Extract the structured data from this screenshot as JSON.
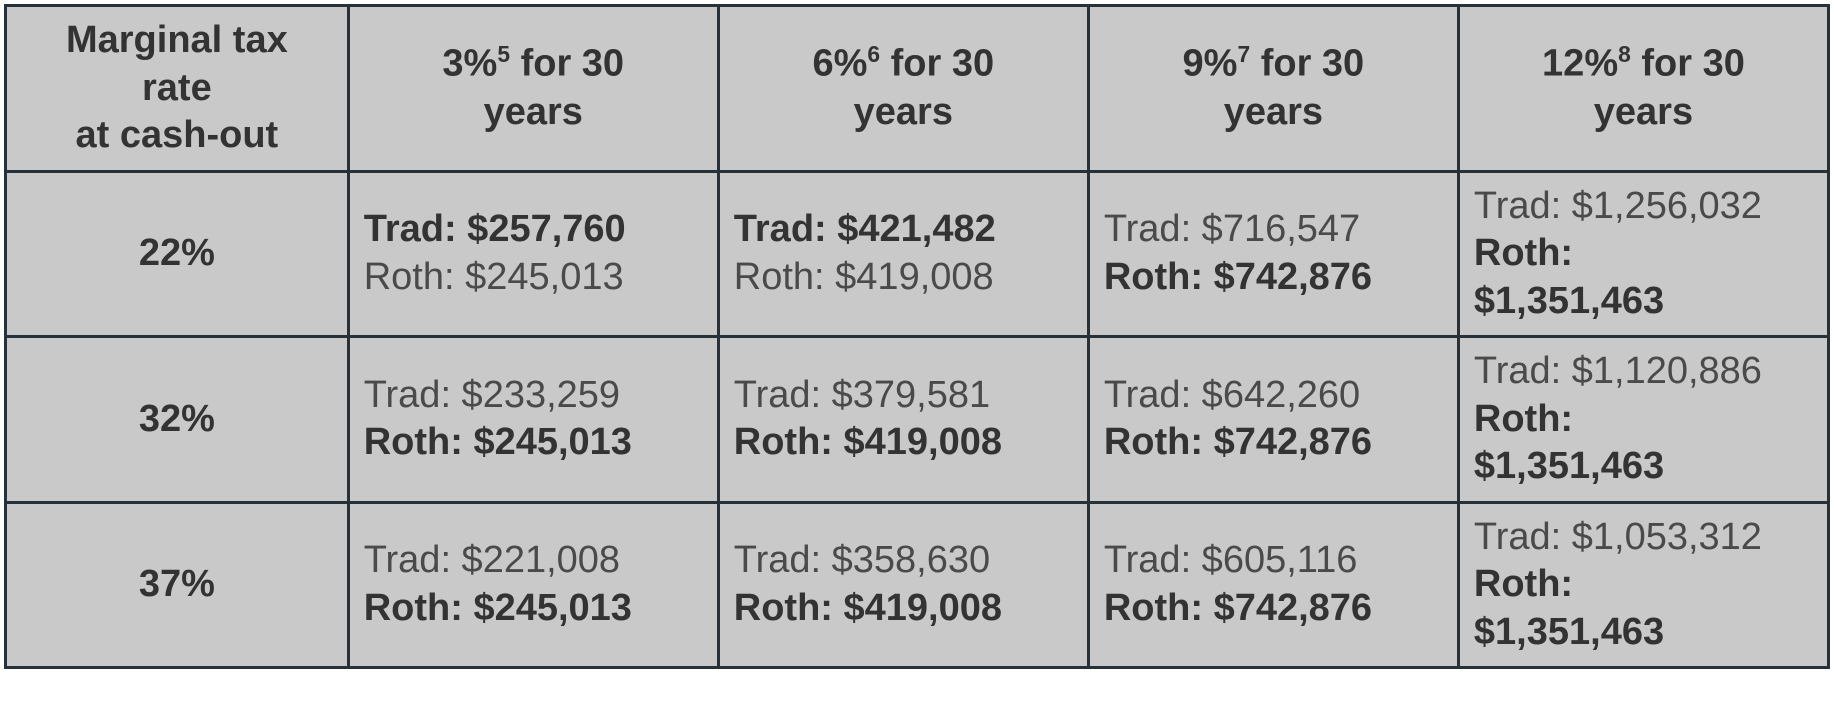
{
  "table": {
    "background_color": "#c9c9c9",
    "border_color": "#27313a",
    "text_color": "#4a4a4a",
    "bold_text_color": "#333333",
    "font_family": "Arial",
    "header_fontsize_pt": 28,
    "body_fontsize_pt": 28,
    "columns": [
      {
        "lines": [
          "Marginal tax",
          "rate",
          "at cash-out"
        ],
        "sup": null
      },
      {
        "percent": "3%",
        "sup": "5",
        "suffix": " for 30",
        "line2": "years"
      },
      {
        "percent": "6%",
        "sup": "6",
        "suffix": " for 30",
        "line2": "years"
      },
      {
        "percent": "9%",
        "sup": "7",
        "suffix": " for 30",
        "line2": "years"
      },
      {
        "percent": "12%",
        "sup": "8",
        "suffix": " for 30",
        "line2": "years"
      }
    ],
    "rows": [
      {
        "rate": "22%",
        "cells": [
          {
            "trad": "Trad: $257,760",
            "trad_bold": true,
            "roth": "Roth: $245,013",
            "roth_bold": false
          },
          {
            "trad": "Trad: $421,482",
            "trad_bold": true,
            "roth": "Roth: $419,008",
            "roth_bold": false
          },
          {
            "trad": "Trad: $716,547",
            "trad_bold": false,
            "roth": "Roth: $742,876",
            "roth_bold": true
          },
          {
            "trad": "Trad: $1,256,032",
            "trad_bold": false,
            "roth": "Roth: $1,351,463",
            "roth_bold": true,
            "wrap": true
          }
        ]
      },
      {
        "rate": "32%",
        "cells": [
          {
            "trad": "Trad: $233,259",
            "trad_bold": false,
            "roth": "Roth: $245,013",
            "roth_bold": true
          },
          {
            "trad": "Trad: $379,581",
            "trad_bold": false,
            "roth": "Roth: $419,008",
            "roth_bold": true
          },
          {
            "trad": "Trad: $642,260",
            "trad_bold": false,
            "roth": "Roth: $742,876",
            "roth_bold": true
          },
          {
            "trad": "Trad: $1,120,886",
            "trad_bold": false,
            "roth": "Roth: $1,351,463",
            "roth_bold": true,
            "wrap": true
          }
        ]
      },
      {
        "rate": "37%",
        "cells": [
          {
            "trad": "Trad: $221,008",
            "trad_bold": false,
            "roth": "Roth: $245,013",
            "roth_bold": true
          },
          {
            "trad": "Trad: $358,630",
            "trad_bold": false,
            "roth": "Roth: $419,008",
            "roth_bold": true
          },
          {
            "trad": "Trad: $605,116",
            "trad_bold": false,
            "roth": "Roth: $742,876",
            "roth_bold": true
          },
          {
            "trad": "Trad: $1,053,312",
            "trad_bold": false,
            "roth": "Roth: $1,351,463",
            "roth_bold": true,
            "wrap": true
          }
        ]
      }
    ]
  }
}
